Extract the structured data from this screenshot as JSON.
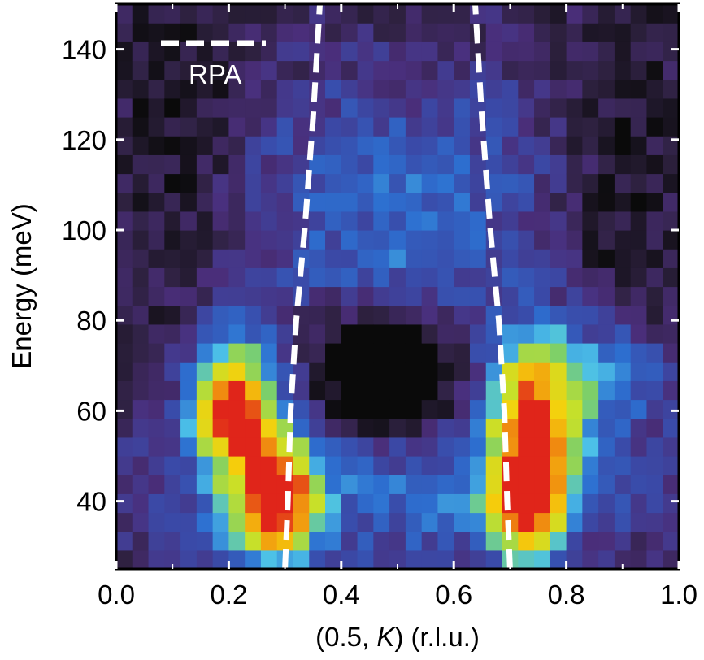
{
  "chart_data": {
    "type": "heatmap",
    "title": "",
    "xlabel": "(0.5, K) (r.l.u.)",
    "xlabel_parts": {
      "before": "(0.5, ",
      "italic": "K",
      "after": ") (r.l.u.)"
    },
    "ylabel": "Energy (meV)",
    "xlim": [
      0.0,
      1.0
    ],
    "ylim": [
      25,
      150
    ],
    "xticks": [
      0.0,
      0.2,
      0.4,
      0.6,
      0.8,
      1.0
    ],
    "xtick_labels": [
      "0.0",
      "0.2",
      "0.4",
      "0.6",
      "0.8",
      "1.0"
    ],
    "yticks": [
      40,
      60,
      80,
      100,
      120,
      140
    ],
    "ytick_labels": [
      "40",
      "60",
      "80",
      "100",
      "120",
      "140"
    ],
    "grid": false,
    "colormap": [
      "#0a0a0a",
      "#2e2140",
      "#4a2e7a",
      "#3a4aa8",
      "#2d6fd0",
      "#4cc1e8",
      "#7ccf6a",
      "#c7e02a",
      "#f5d00c",
      "#f08a10",
      "#e0241a"
    ],
    "intensity_features": [
      {
        "name": "left-upper-peak",
        "x": 0.2,
        "y": 62,
        "intensity": 0.95
      },
      {
        "name": "left-lower-peak",
        "x": 0.29,
        "y": 40,
        "intensity": 1.0
      },
      {
        "name": "right-lower-peak",
        "x": 0.73,
        "y": 40,
        "intensity": 0.98
      },
      {
        "name": "right-upper-band",
        "x": 0.75,
        "y": 63,
        "intensity": 0.72
      }
    ],
    "series": [
      {
        "name": "RPA",
        "style": "dashed",
        "color": "#ffffff",
        "branches": [
          {
            "x": [
              0.3,
              0.305,
              0.31,
              0.32,
              0.335,
              0.35,
              0.362
            ],
            "y": [
              25,
              40,
              60,
              80,
              100,
              125,
              150
            ]
          },
          {
            "x": [
              0.7,
              0.695,
              0.69,
              0.68,
              0.665,
              0.65,
              0.638
            ],
            "y": [
              25,
              40,
              60,
              80,
              100,
              125,
              150
            ]
          }
        ]
      }
    ],
    "legend": {
      "position": "top-left",
      "label": "RPA"
    }
  }
}
